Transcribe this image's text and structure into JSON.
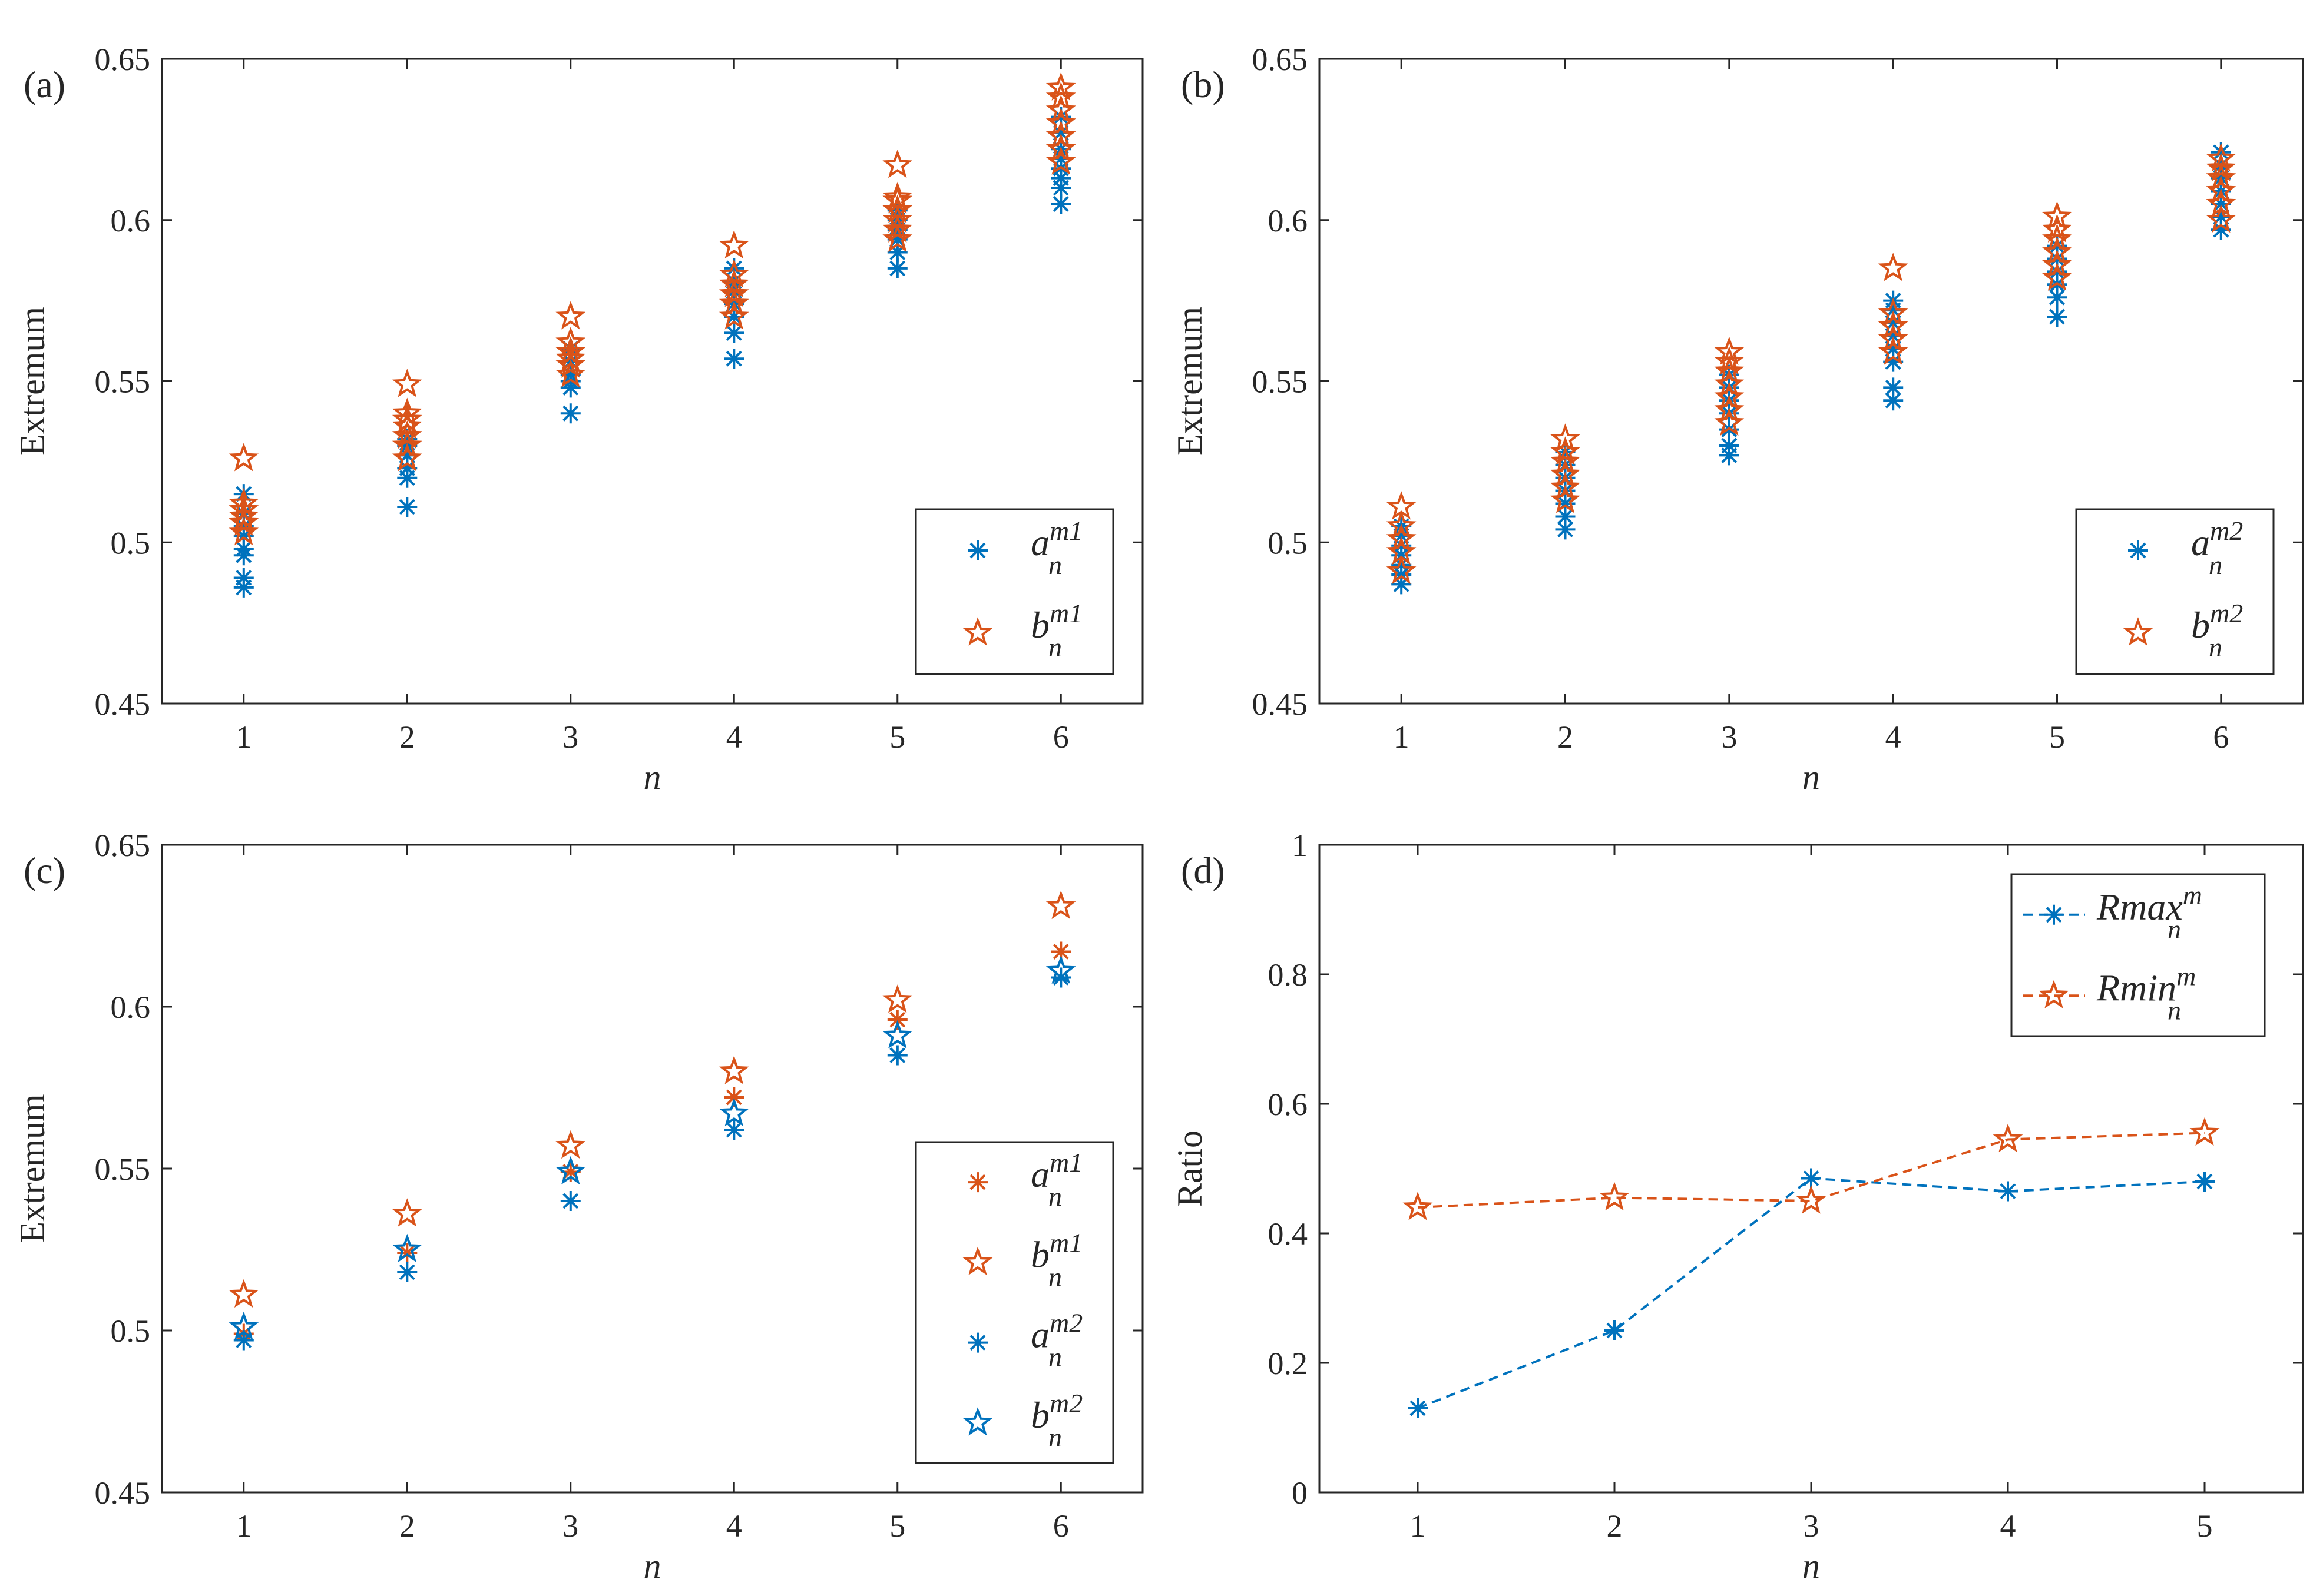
{
  "chart_data": [
    {
      "panel": "(a)",
      "type": "scatter",
      "xlabel": "n",
      "ylabel": "Extremum",
      "xlim": [
        0.5,
        6.5
      ],
      "ylim": [
        0.45,
        0.65
      ],
      "xticks": [
        1,
        2,
        3,
        4,
        5,
        6
      ],
      "yticks": [
        0.45,
        0.5,
        0.55,
        0.6,
        0.65
      ],
      "ytick_labels": [
        "0.45",
        "0.5",
        "0.55",
        "0.6",
        "0.65"
      ],
      "legend_position": "bottom-right",
      "series": [
        {
          "name": "a_n^m1",
          "base": "a",
          "sub": "n",
          "sup": "m1",
          "marker": "asterisk",
          "color": "#0072BD",
          "points": [
            [
              1,
              0.486
            ],
            [
              1,
              0.489
            ],
            [
              1,
              0.496
            ],
            [
              1,
              0.498
            ],
            [
              1,
              0.502
            ],
            [
              1,
              0.505
            ],
            [
              1,
              0.509
            ],
            [
              1,
              0.515
            ],
            [
              2,
              0.511
            ],
            [
              2,
              0.52
            ],
            [
              2,
              0.523
            ],
            [
              2,
              0.527
            ],
            [
              2,
              0.53
            ],
            [
              2,
              0.532
            ],
            [
              3,
              0.54
            ],
            [
              3,
              0.548
            ],
            [
              3,
              0.55
            ],
            [
              3,
              0.552
            ],
            [
              3,
              0.556
            ],
            [
              3,
              0.56
            ],
            [
              4,
              0.557
            ],
            [
              4,
              0.565
            ],
            [
              4,
              0.57
            ],
            [
              4,
              0.574
            ],
            [
              4,
              0.578
            ],
            [
              4,
              0.581
            ],
            [
              4,
              0.585
            ],
            [
              5,
              0.585
            ],
            [
              5,
              0.59
            ],
            [
              5,
              0.594
            ],
            [
              5,
              0.597
            ],
            [
              5,
              0.6
            ],
            [
              5,
              0.603
            ],
            [
              6,
              0.605
            ],
            [
              6,
              0.61
            ],
            [
              6,
              0.613
            ],
            [
              6,
              0.616
            ],
            [
              6,
              0.619
            ],
            [
              6,
              0.622
            ],
            [
              6,
              0.627
            ],
            [
              6,
              0.632
            ]
          ]
        },
        {
          "name": "b_n^m1",
          "base": "b",
          "sub": "n",
          "sup": "m1",
          "marker": "star",
          "color": "#D95319",
          "points": [
            [
              1,
              0.503
            ],
            [
              1,
              0.506
            ],
            [
              1,
              0.508
            ],
            [
              1,
              0.51
            ],
            [
              1,
              0.512
            ],
            [
              1,
              0.526
            ],
            [
              2,
              0.526
            ],
            [
              2,
              0.53
            ],
            [
              2,
              0.533
            ],
            [
              2,
              0.536
            ],
            [
              2,
              0.538
            ],
            [
              2,
              0.54
            ],
            [
              2,
              0.549
            ],
            [
              3,
              0.552
            ],
            [
              3,
              0.555
            ],
            [
              3,
              0.557
            ],
            [
              3,
              0.559
            ],
            [
              3,
              0.562
            ],
            [
              3,
              0.57
            ],
            [
              4,
              0.57
            ],
            [
              4,
              0.574
            ],
            [
              4,
              0.577
            ],
            [
              4,
              0.58
            ],
            [
              4,
              0.583
            ],
            [
              4,
              0.592
            ],
            [
              5,
              0.594
            ],
            [
              5,
              0.597
            ],
            [
              5,
              0.6
            ],
            [
              5,
              0.603
            ],
            [
              5,
              0.606
            ],
            [
              5,
              0.607
            ],
            [
              5,
              0.617
            ],
            [
              6,
              0.618
            ],
            [
              6,
              0.622
            ],
            [
              6,
              0.626
            ],
            [
              6,
              0.63
            ],
            [
              6,
              0.634
            ],
            [
              6,
              0.638
            ],
            [
              6,
              0.641
            ]
          ]
        }
      ]
    },
    {
      "panel": "(b)",
      "type": "scatter",
      "xlabel": "n",
      "ylabel": "Extremum",
      "xlim": [
        0.5,
        6.5
      ],
      "ylim": [
        0.45,
        0.65
      ],
      "xticks": [
        1,
        2,
        3,
        4,
        5,
        6
      ],
      "yticks": [
        0.45,
        0.5,
        0.55,
        0.6,
        0.65
      ],
      "ytick_labels": [
        "0.45",
        "0.5",
        "0.55",
        "0.6",
        "0.65"
      ],
      "legend_position": "bottom-right",
      "series": [
        {
          "name": "a_n^m2",
          "base": "a",
          "sub": "n",
          "sup": "m2",
          "marker": "asterisk",
          "color": "#0072BD",
          "points": [
            [
              1,
              0.487
            ],
            [
              1,
              0.49
            ],
            [
              1,
              0.493
            ],
            [
              1,
              0.496
            ],
            [
              1,
              0.499
            ],
            [
              1,
              0.502
            ],
            [
              1,
              0.505
            ],
            [
              2,
              0.504
            ],
            [
              2,
              0.508
            ],
            [
              2,
              0.512
            ],
            [
              2,
              0.516
            ],
            [
              2,
              0.52
            ],
            [
              2,
              0.524
            ],
            [
              2,
              0.528
            ],
            [
              3,
              0.527
            ],
            [
              3,
              0.53
            ],
            [
              3,
              0.535
            ],
            [
              3,
              0.54
            ],
            [
              3,
              0.544
            ],
            [
              3,
              0.548
            ],
            [
              3,
              0.552
            ],
            [
              4,
              0.544
            ],
            [
              4,
              0.548
            ],
            [
              4,
              0.556
            ],
            [
              4,
              0.56
            ],
            [
              4,
              0.564
            ],
            [
              4,
              0.568
            ],
            [
              4,
              0.572
            ],
            [
              4,
              0.575
            ],
            [
              5,
              0.57
            ],
            [
              5,
              0.576
            ],
            [
              5,
              0.58
            ],
            [
              5,
              0.584
            ],
            [
              5,
              0.588
            ],
            [
              5,
              0.592
            ],
            [
              6,
              0.597
            ],
            [
              6,
              0.601
            ],
            [
              6,
              0.605
            ],
            [
              6,
              0.609
            ],
            [
              6,
              0.613
            ],
            [
              6,
              0.617
            ],
            [
              6,
              0.621
            ]
          ]
        },
        {
          "name": "b_n^m2",
          "base": "b",
          "sub": "n",
          "sup": "m2",
          "marker": "star",
          "color": "#D95319",
          "points": [
            [
              1,
              0.491
            ],
            [
              1,
              0.497
            ],
            [
              1,
              0.501
            ],
            [
              1,
              0.505
            ],
            [
              1,
              0.511
            ],
            [
              2,
              0.513
            ],
            [
              2,
              0.517
            ],
            [
              2,
              0.521
            ],
            [
              2,
              0.525
            ],
            [
              2,
              0.528
            ],
            [
              2,
              0.532
            ],
            [
              3,
              0.537
            ],
            [
              3,
              0.541
            ],
            [
              3,
              0.545
            ],
            [
              3,
              0.549
            ],
            [
              3,
              0.553
            ],
            [
              3,
              0.556
            ],
            [
              3,
              0.559
            ],
            [
              4,
              0.559
            ],
            [
              4,
              0.563
            ],
            [
              4,
              0.567
            ],
            [
              4,
              0.571
            ],
            [
              4,
              0.585
            ],
            [
              5,
              0.582
            ],
            [
              5,
              0.586
            ],
            [
              5,
              0.59
            ],
            [
              5,
              0.594
            ],
            [
              5,
              0.597
            ],
            [
              5,
              0.601
            ],
            [
              6,
              0.6
            ],
            [
              6,
              0.605
            ],
            [
              6,
              0.609
            ],
            [
              6,
              0.613
            ],
            [
              6,
              0.616
            ],
            [
              6,
              0.619
            ]
          ]
        }
      ]
    },
    {
      "panel": "(c)",
      "type": "scatter",
      "xlabel": "n",
      "ylabel": "Extremum",
      "xlim": [
        0.5,
        6.5
      ],
      "ylim": [
        0.45,
        0.65
      ],
      "xticks": [
        1,
        2,
        3,
        4,
        5,
        6
      ],
      "yticks": [
        0.45,
        0.5,
        0.55,
        0.6,
        0.65
      ],
      "ytick_labels": [
        "0.45",
        "0.5",
        "0.55",
        "0.6",
        "0.65"
      ],
      "legend_position": "bottom-right",
      "series": [
        {
          "name": "a_n^m1",
          "base": "a",
          "sub": "n",
          "sup": "m1",
          "marker": "asterisk",
          "color": "#D95319",
          "points": [
            [
              1,
              0.499
            ],
            [
              2,
              0.524
            ],
            [
              3,
              0.549
            ],
            [
              4,
              0.572
            ],
            [
              5,
              0.596
            ],
            [
              6,
              0.617
            ]
          ]
        },
        {
          "name": "b_n^m1",
          "base": "b",
          "sub": "n",
          "sup": "m1",
          "marker": "star",
          "color": "#D95319",
          "points": [
            [
              1,
              0.511
            ],
            [
              2,
              0.536
            ],
            [
              3,
              0.557
            ],
            [
              4,
              0.58
            ],
            [
              5,
              0.602
            ],
            [
              6,
              0.631
            ]
          ]
        },
        {
          "name": "a_n^m2",
          "base": "a",
          "sub": "n",
          "sup": "m2",
          "marker": "asterisk",
          "color": "#0072BD",
          "points": [
            [
              1,
              0.497
            ],
            [
              2,
              0.518
            ],
            [
              3,
              0.54
            ],
            [
              4,
              0.562
            ],
            [
              5,
              0.585
            ],
            [
              6,
              0.609
            ]
          ]
        },
        {
          "name": "b_n^m2",
          "base": "b",
          "sub": "n",
          "sup": "m2",
          "marker": "star",
          "color": "#0072BD",
          "points": [
            [
              1,
              0.501
            ],
            [
              2,
              0.525
            ],
            [
              3,
              0.549
            ],
            [
              4,
              0.567
            ],
            [
              5,
              0.591
            ],
            [
              6,
              0.611
            ]
          ]
        }
      ]
    },
    {
      "panel": "(d)",
      "type": "line",
      "xlabel": "n",
      "ylabel": "Ratio",
      "xlim": [
        0.5,
        5.5
      ],
      "ylim": [
        0,
        1
      ],
      "xticks": [
        1,
        2,
        3,
        4,
        5
      ],
      "yticks": [
        0,
        0.2,
        0.4,
        0.6,
        0.8,
        1
      ],
      "ytick_labels": [
        "0",
        "0.2",
        "0.4",
        "0.6",
        "0.8",
        "1"
      ],
      "legend_position": "top-right",
      "series": [
        {
          "name": "Rmax_n^m",
          "base": "Rmax",
          "sub": "n",
          "sup": "m",
          "marker": "asterisk",
          "color": "#0072BD",
          "line": "dashed",
          "x": [
            1,
            2,
            3,
            4,
            5
          ],
          "values": [
            0.13,
            0.25,
            0.485,
            0.465,
            0.48
          ]
        },
        {
          "name": "Rmin_n^m",
          "base": "Rmin",
          "sub": "n",
          "sup": "m",
          "marker": "star",
          "color": "#D95319",
          "line": "dashed",
          "x": [
            1,
            2,
            3,
            4,
            5
          ],
          "values": [
            0.44,
            0.455,
            0.45,
            0.545,
            0.555
          ]
        }
      ]
    }
  ]
}
